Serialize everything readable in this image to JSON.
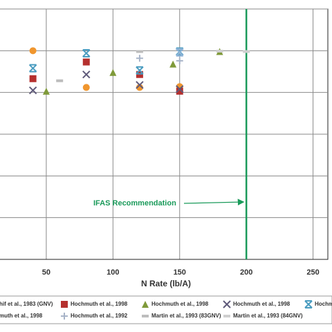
{
  "chart_data": {
    "type": "scatter",
    "x_label": "N Rate (lb/A)",
    "xlim": [
      15.3,
      261.1
    ],
    "xticks": [
      50,
      100,
      150,
      200,
      250
    ],
    "ylim": [
      0,
      6
    ],
    "ygrid": [
      1,
      2,
      3,
      4,
      5,
      6
    ],
    "vline": 200,
    "vline_color": "#1a9a5a",
    "annotation": "IFAS Recommendation",
    "series": [
      {
        "name": "hif et al., 1983 (GNV)",
        "color": "#f0962e",
        "marker": "circle",
        "x": [
          40,
          80,
          120,
          150
        ],
        "values": [
          5.0,
          4.12,
          4.12,
          4.14
        ]
      },
      {
        "name": "Hochmuth  et al., 1998",
        "color": "#b5302e",
        "marker": "square",
        "x": [
          40,
          80,
          120,
          150
        ],
        "values": [
          4.33,
          4.73,
          4.43,
          4.03
        ]
      },
      {
        "name": "Hochmuth  et al., 1998",
        "color": "#7f9a3a",
        "marker": "triangle",
        "x": [
          50,
          100,
          145,
          180
        ],
        "values": [
          4.03,
          4.48,
          4.68,
          4.98
        ]
      },
      {
        "name": "Hochmuth  et al., 1998",
        "color": "#5f5a7a",
        "marker": "x",
        "x": [
          40,
          80,
          120,
          150
        ],
        "values": [
          4.05,
          4.43,
          4.18,
          4.08
        ]
      },
      {
        "name": "Hochmuth",
        "color": "#4a9cc0",
        "marker": "star",
        "x": [
          40,
          80,
          120,
          150
        ],
        "values": [
          4.58,
          4.94,
          4.53,
          4.98
        ]
      },
      {
        "name": "muth et al., 1998",
        "color": "#8fb4d8",
        "marker": "star",
        "x": [
          150
        ],
        "values": [
          4.96
        ]
      },
      {
        "name": "Hochmuth et al., 1992",
        "color": "#a8b4c8",
        "marker": "plus",
        "x": [
          150,
          120
        ],
        "values": [
          4.76,
          4.82
        ]
      },
      {
        "name": "Martin et al., 1993 (83GNV)",
        "color": "#bdbdbd",
        "marker": "dash",
        "x": [
          60,
          120
        ],
        "values": [
          4.28,
          4.98
        ]
      },
      {
        "name": "Martin et al., 1993 (84GNV)",
        "color": "#cfcfcf",
        "marker": "dash",
        "x": [
          200,
          180
        ],
        "values": [
          4.98,
          4.99
        ]
      }
    ]
  }
}
